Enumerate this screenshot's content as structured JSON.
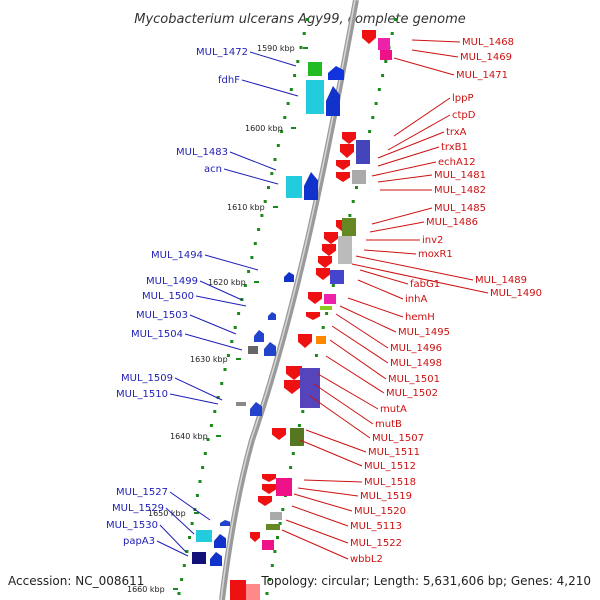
{
  "title": "Mycobacterium ulcerans Agy99, complete genome",
  "footer": {
    "accession": "Accession: NC_008611",
    "topology": "Topology: circular; Length: 5,631,606 bp; Genes: 4,210"
  },
  "colors": {
    "left_label": "#1f1fb4",
    "right_label": "#cc1111",
    "backbone": "#9a9a9a",
    "tick": "#1a8a1a"
  },
  "kbp_marks": [
    "1590 kbp",
    "1600 kbp",
    "1610 kbp",
    "1620 kbp",
    "1630 kbp",
    "1640 kbp",
    "1650 kbp",
    "1660 kbp"
  ],
  "left_labels": [
    "MUL_1472",
    "fdhF",
    "MUL_1483",
    "acn",
    "MUL_1494",
    "MUL_1499",
    "MUL_1500",
    "MUL_1503",
    "MUL_1504",
    "MUL_1509",
    "MUL_1510",
    "MUL_1527",
    "MUL_1529",
    "MUL_1530",
    "papA3"
  ],
  "right_labels": [
    "MUL_1468",
    "MUL_1469",
    "MUL_1471",
    "lppP",
    "ctpD",
    "trxA",
    "trxB1",
    "echA12",
    "MUL_1481",
    "MUL_1482",
    "MUL_1485",
    "MUL_1486",
    "inv2",
    "moxR1",
    "MUL_1489",
    "MUL_1490",
    "fabG1",
    "inhA",
    "hemH",
    "MUL_1495",
    "MUL_1496",
    "MUL_1498",
    "MUL_1501",
    "MUL_1502",
    "mutA",
    "mutB",
    "MUL_1507",
    "MUL_1511",
    "MUL_1512",
    "MUL_1518",
    "MUL_1519",
    "MUL_1520",
    "MUL_5113",
    "MUL_1522",
    "wbbL2"
  ]
}
